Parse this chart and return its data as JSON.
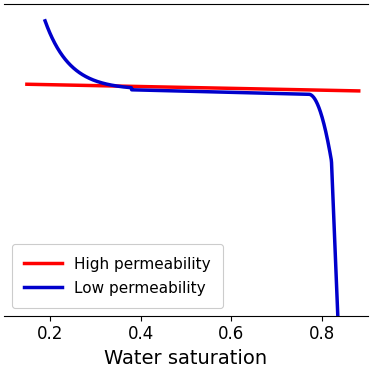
{
  "title": "",
  "xlabel": "Water saturation",
  "ylabel": "",
  "xlim": [
    0.1,
    0.9
  ],
  "ylim": [
    -1.8,
    1.0
  ],
  "xticks": [
    0.2,
    0.4,
    0.6,
    0.8
  ],
  "legend_labels": [
    "High permeability",
    "Low permeability"
  ],
  "legend_colors": [
    "#ff0000",
    "#0000cc"
  ],
  "line_width": 2.5,
  "bg_color": "#ffffff",
  "high_perm_color": "#ff0000",
  "low_perm_color": "#0000cc",
  "xlabel_fontsize": 14,
  "tick_fontsize": 12
}
